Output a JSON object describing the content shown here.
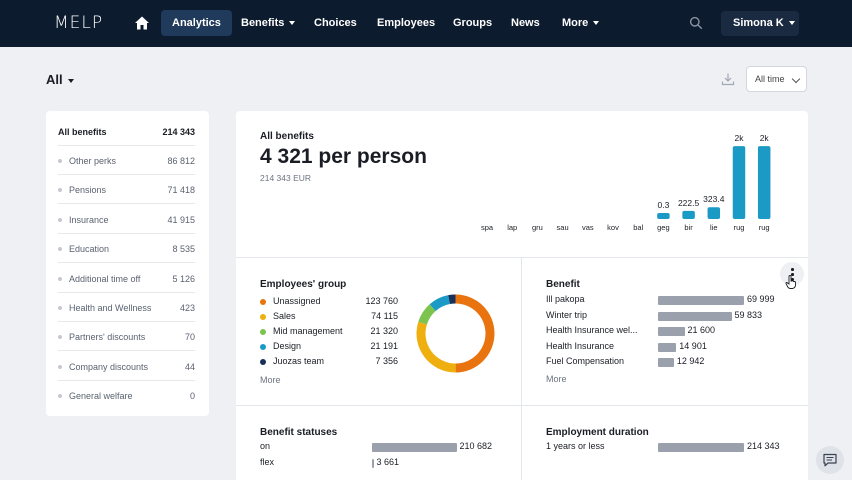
{
  "nav": {
    "logo": "MELP",
    "items": [
      {
        "label": "Analytics",
        "active": true,
        "dropdown": false
      },
      {
        "label": "Benefits",
        "active": false,
        "dropdown": true
      },
      {
        "label": "Choices",
        "active": false,
        "dropdown": false
      },
      {
        "label": "Employees",
        "active": false,
        "dropdown": false
      },
      {
        "label": "Groups",
        "active": false,
        "dropdown": false
      },
      {
        "label": "News",
        "active": false,
        "dropdown": false
      },
      {
        "label": "More",
        "active": false,
        "dropdown": true
      }
    ],
    "user": "Simona K"
  },
  "filter": {
    "label": "All",
    "time": "All time"
  },
  "sidebar": {
    "items": [
      {
        "label": "All benefits",
        "value": "214 343"
      },
      {
        "label": "Other perks",
        "value": "86 812"
      },
      {
        "label": "Pensions",
        "value": "71 418"
      },
      {
        "label": "Insurance",
        "value": "41 915"
      },
      {
        "label": "Education",
        "value": "8 535"
      },
      {
        "label": "Additional time off",
        "value": "5 126"
      },
      {
        "label": "Health and Wellness",
        "value": "423"
      },
      {
        "label": "Partners' discounts",
        "value": "70"
      },
      {
        "label": "Company discounts",
        "value": "44"
      },
      {
        "label": "General welfare",
        "value": "0"
      }
    ]
  },
  "all_benefits": {
    "title": "All benefits",
    "per_person": "4 321 per person",
    "total": "214 343 EUR"
  },
  "employees_group": {
    "title": "Employees' group",
    "more": "More",
    "items": [
      {
        "label": "Unassigned",
        "value": "123 760",
        "color": "#e8730f"
      },
      {
        "label": "Sales",
        "value": "74 115",
        "color": "#efb00f"
      },
      {
        "label": "Mid management",
        "value": "21 320",
        "color": "#7cc44e"
      },
      {
        "label": "Design",
        "value": "21 191",
        "color": "#1b9ac5"
      },
      {
        "label": "Juozas team",
        "value": "7 356",
        "color": "#18305a"
      }
    ]
  },
  "benefit": {
    "title": "Benefit",
    "more": "More",
    "items": [
      {
        "label": "Ill pakopa",
        "value": "69 999",
        "n": 69999
      },
      {
        "label": "Winter trip",
        "value": "59 833",
        "n": 59833
      },
      {
        "label": "Health Insurance wel...",
        "value": "21 600",
        "n": 21600
      },
      {
        "label": "Health Insurance",
        "value": "14 901",
        "n": 14901
      },
      {
        "label": "Fuel Compensation",
        "value": "12 942",
        "n": 12942
      }
    ]
  },
  "benefit_statuses": {
    "title": "Benefit statuses",
    "items": [
      {
        "label": "on",
        "value": "210 682",
        "n": 210682
      },
      {
        "label": "flex",
        "value": "3 661",
        "n": 3661
      }
    ]
  },
  "employment_duration": {
    "title": "Employment duration",
    "items": [
      {
        "label": "1 years or less",
        "value": "214 343",
        "n": 214343
      }
    ]
  },
  "chart_data": {
    "type": "bar",
    "categories": [
      "spa",
      "lap",
      "gru",
      "sau",
      "vas",
      "kov",
      "bal",
      "geg",
      "bir",
      "lie",
      "rug",
      "rug"
    ],
    "values": [
      0,
      0,
      0,
      0,
      0,
      0,
      0,
      0.3,
      222.5,
      323.4,
      2000,
      2000
    ],
    "data_labels": [
      "",
      "",
      "",
      "",
      "",
      "",
      "",
      "0.3",
      "222.5",
      "323.4",
      "2k",
      "2k"
    ],
    "scale_max": 2250,
    "color": "#1b9ac5",
    "title": "",
    "xlabel": "",
    "ylabel": ""
  }
}
